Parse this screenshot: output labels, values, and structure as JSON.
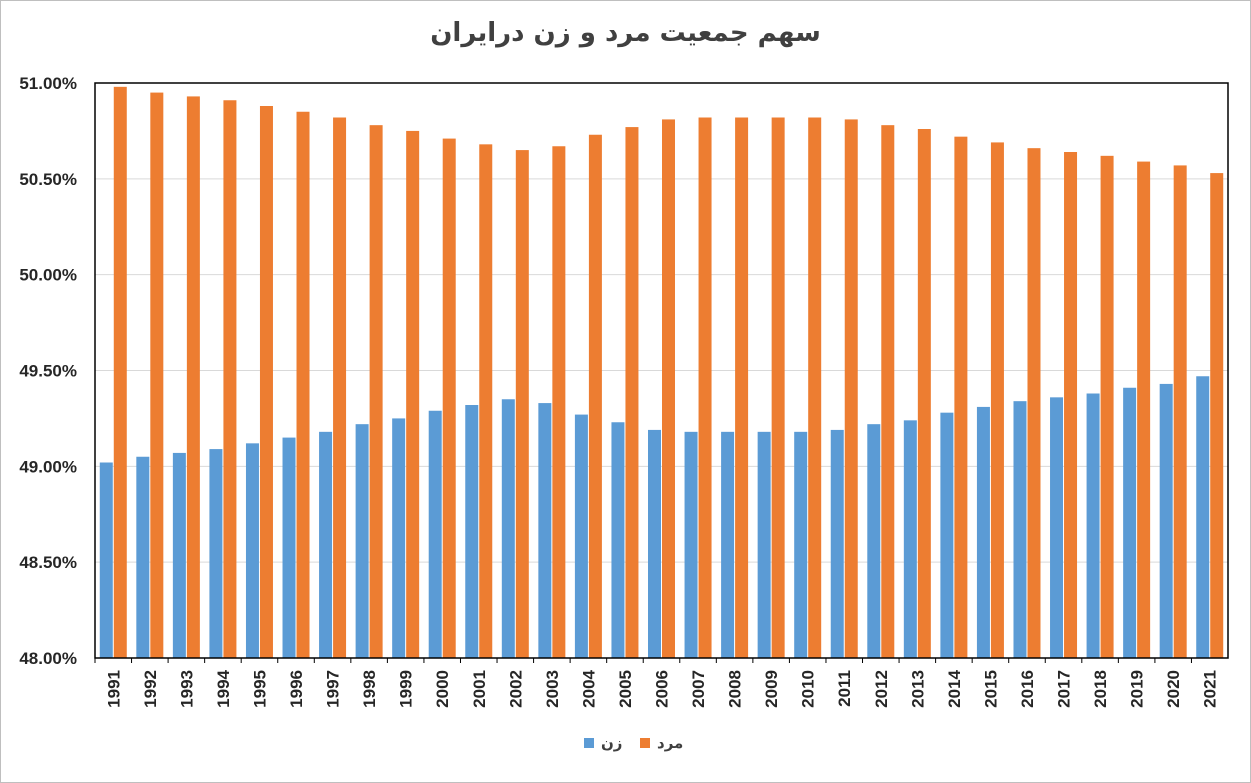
{
  "chart_data": {
    "type": "bar",
    "title": "سهم جمعیت مرد و زن درایران",
    "xlabel": "",
    "ylabel": "",
    "ylim": [
      48.0,
      51.0
    ],
    "yticks": [
      "48.00%",
      "48.50%",
      "49.00%",
      "49.50%",
      "50.00%",
      "50.50%",
      "51.00%"
    ],
    "ytick_values": [
      48.0,
      48.5,
      49.0,
      49.5,
      50.0,
      50.5,
      51.0
    ],
    "grid": true,
    "legend_position": "bottom",
    "categories": [
      "1991",
      "1992",
      "1993",
      "1994",
      "1995",
      "1996",
      "1997",
      "1998",
      "1999",
      "2000",
      "2001",
      "2002",
      "2003",
      "2004",
      "2005",
      "2006",
      "2007",
      "2008",
      "2009",
      "2010",
      "2011",
      "2012",
      "2013",
      "2014",
      "2015",
      "2016",
      "2017",
      "2018",
      "2019",
      "2020",
      "2021"
    ],
    "series": [
      {
        "name": "زن",
        "color": "#5b9bd5",
        "values": [
          49.02,
          49.05,
          49.07,
          49.09,
          49.12,
          49.15,
          49.18,
          49.22,
          49.25,
          49.29,
          49.32,
          49.35,
          49.33,
          49.27,
          49.23,
          49.19,
          49.18,
          49.18,
          49.18,
          49.18,
          49.19,
          49.22,
          49.24,
          49.28,
          49.31,
          49.34,
          49.36,
          49.38,
          49.41,
          49.43,
          49.47
        ]
      },
      {
        "name": "مرد",
        "color": "#ed7d31",
        "values": [
          50.98,
          50.95,
          50.93,
          50.91,
          50.88,
          50.85,
          50.82,
          50.78,
          50.75,
          50.71,
          50.68,
          50.65,
          50.67,
          50.73,
          50.77,
          50.81,
          50.82,
          50.82,
          50.82,
          50.82,
          50.81,
          50.78,
          50.76,
          50.72,
          50.69,
          50.66,
          50.64,
          50.62,
          50.59,
          50.57,
          50.53
        ]
      }
    ]
  }
}
